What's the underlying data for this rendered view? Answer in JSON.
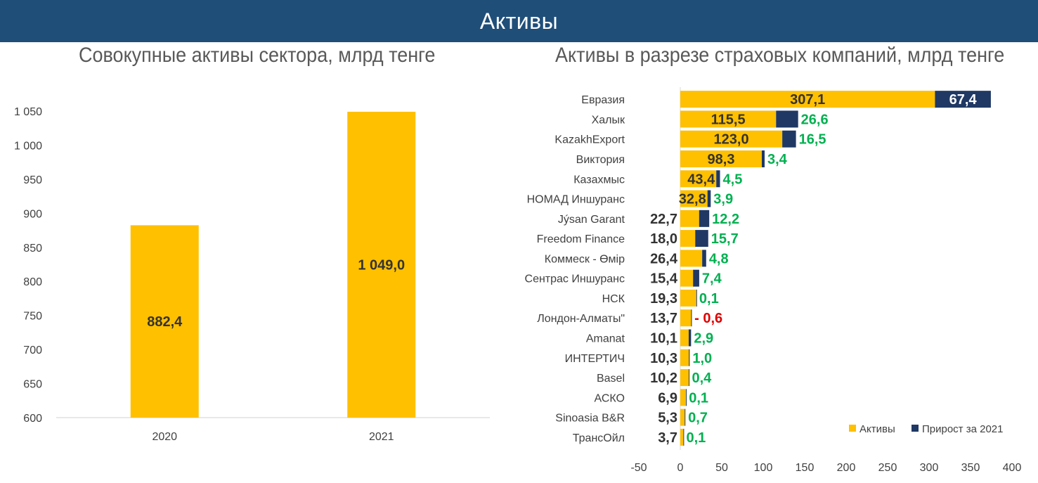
{
  "banner": {
    "title": "Активы"
  },
  "colors": {
    "banner": "#1f4e79",
    "assets": "#ffc000",
    "growth": "#1f3864",
    "positive_label": "#00b050",
    "negative_label": "#e00000",
    "value_label": "#333333",
    "axis_text": "#404040"
  },
  "chart_data": [
    {
      "type": "bar",
      "title": "Совокупные активы сектора, млрд тенге",
      "categories": [
        "2020",
        "2021"
      ],
      "values": [
        882.4,
        1049.0
      ],
      "value_labels": [
        "882,4",
        "1 049,0"
      ],
      "ylim": [
        600,
        1050
      ],
      "yticks": [
        600,
        650,
        700,
        750,
        800,
        850,
        900,
        950,
        1000,
        1050
      ],
      "ytick_labels": [
        "600",
        "650",
        "700",
        "750",
        "800",
        "850",
        "900",
        "950",
        "1 000",
        "1 050"
      ],
      "xlabel": "",
      "ylabel": "",
      "grid": false,
      "legend": "none"
    },
    {
      "type": "bar",
      "orientation": "horizontal",
      "stacked": true,
      "title": "Активы в разрезе страховых компаний, млрд тенге",
      "categories": [
        "Евразия",
        "Халык",
        "KazakhExport",
        "Виктория",
        "Казахмыс",
        "НОМАД Иншуранс",
        "Jýsan Garant",
        "Freedom Finance",
        "Коммеск - Өмір",
        "Сентрас Иншуранс",
        "НСК",
        "Лондон-Алматы\"",
        "Amanat",
        "ИНТЕРТИЧ",
        "Basel",
        "АСКО",
        "Sinoasia B&R",
        "ТрансОйл"
      ],
      "series": [
        {
          "name": "Активы",
          "values": [
            307.1,
            115.5,
            123.0,
            98.3,
            43.4,
            32.8,
            22.7,
            18.0,
            26.4,
            15.4,
            19.3,
            13.7,
            10.1,
            10.3,
            10.2,
            6.9,
            5.3,
            3.7
          ],
          "labels": [
            "307,1",
            "115,5",
            "123,0",
            "98,3",
            "43,4",
            "32,8",
            "22,7",
            "18,0",
            "26,4",
            "15,4",
            "19,3",
            "13,7",
            "10,1",
            "10,3",
            "10,2",
            "6,9",
            "5,3",
            "3,7"
          ]
        },
        {
          "name": "Прирост за 2021",
          "values": [
            67.4,
            26.6,
            16.5,
            3.4,
            4.5,
            3.9,
            12.2,
            15.7,
            4.8,
            7.4,
            0.1,
            -0.6,
            2.9,
            1.0,
            0.4,
            0.1,
            0.7,
            0.1
          ],
          "labels": [
            "67,4",
            "26,6",
            "16,5",
            "3,4",
            "4,5",
            "3,9",
            "12,2",
            "15,7",
            "4,8",
            "7,4",
            "0,1",
            "- 0,6",
            "2,9",
            "1,0",
            "0,4",
            "0,1",
            "0,7",
            "0,1"
          ]
        }
      ],
      "xlim": [
        -50,
        400
      ],
      "xticks": [
        -50,
        0,
        50,
        100,
        150,
        200,
        250,
        300,
        350,
        400
      ],
      "xtick_labels": [
        "-50",
        "0",
        "50",
        "100",
        "150",
        "200",
        "250",
        "300",
        "350",
        "400"
      ],
      "xlabel": "",
      "ylabel": "",
      "grid": false,
      "legend": "bottom-right"
    }
  ]
}
